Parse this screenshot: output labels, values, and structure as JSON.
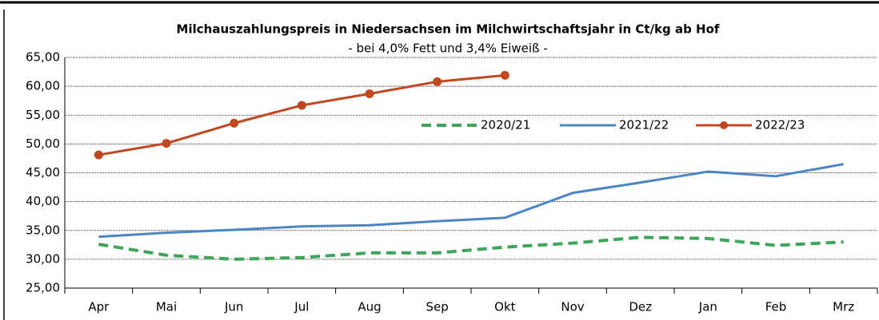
{
  "chart_data": {
    "type": "line",
    "title": "Milchauszahlungspreis in Niedersachsen im Milchwirtschaftsjahr in Ct/kg ab Hof",
    "subtitle": "- bei 4,0% Fett und 3,4% Eiweiß -",
    "categories": [
      "Apr",
      "Mai",
      "Jun",
      "Jul",
      "Aug",
      "Sep",
      "Okt",
      "Nov",
      "Dez",
      "Jan",
      "Feb",
      "Mrz"
    ],
    "series": [
      {
        "name": "2020/21",
        "color": "#3fa55a",
        "style": "dashed",
        "markers": false,
        "values": [
          32.6,
          30.7,
          30.0,
          30.3,
          31.1,
          31.1,
          32.1,
          32.8,
          33.8,
          33.6,
          32.4,
          33.0
        ]
      },
      {
        "name": "2021/22",
        "color": "#4a86c5",
        "style": "solid",
        "markers": false,
        "values": [
          33.9,
          34.6,
          35.1,
          35.7,
          35.9,
          36.6,
          37.2,
          41.5,
          43.3,
          45.2,
          44.4,
          46.5
        ]
      },
      {
        "name": "2022/23",
        "color": "#c0471f",
        "style": "solid",
        "markers": true,
        "values": [
          48.1,
          50.1,
          53.6,
          56.7,
          58.7,
          60.8,
          61.9,
          null,
          null,
          null,
          null,
          null
        ]
      }
    ],
    "ylim": [
      25,
      65
    ],
    "yticks": [
      {
        "value": 25,
        "label": "25,00"
      },
      {
        "value": 30,
        "label": "30,00"
      },
      {
        "value": 35,
        "label": "35,00"
      },
      {
        "value": 40,
        "label": "40,00"
      },
      {
        "value": 45,
        "label": "45,00"
      },
      {
        "value": 50,
        "label": "50,00"
      },
      {
        "value": 55,
        "label": "55,00"
      },
      {
        "value": 60,
        "label": "60,00"
      },
      {
        "value": 65,
        "label": "65,00"
      }
    ],
    "grid": true,
    "legend": "upper right"
  }
}
